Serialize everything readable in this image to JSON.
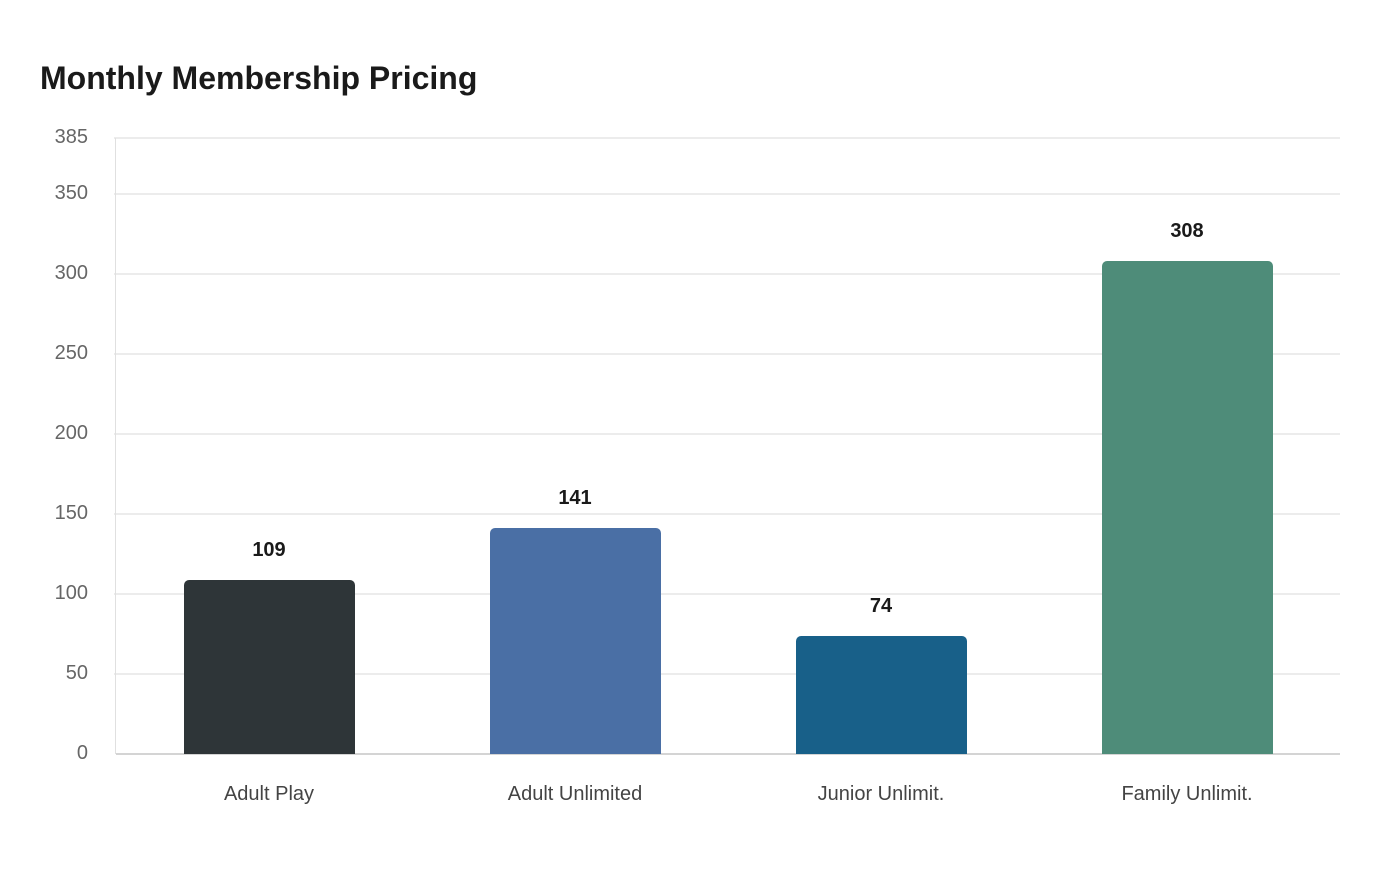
{
  "chart_data": {
    "type": "bar",
    "title": "Monthly Membership Pricing",
    "xlabel": "",
    "ylabel": "",
    "categories": [
      "Adult Play",
      "Adult Unlimited",
      "Junior Unlimit.",
      "Family Unlimit."
    ],
    "values": [
      109,
      141,
      74,
      308
    ],
    "colors": [
      "#2e3538",
      "#4a6fa5",
      "#186089",
      "#4e8c79"
    ],
    "ylim": [
      0,
      385
    ],
    "yticks": [
      0,
      50,
      100,
      150,
      200,
      250,
      300,
      350,
      385
    ],
    "grid": true,
    "legend": "none",
    "data_labels": true
  }
}
